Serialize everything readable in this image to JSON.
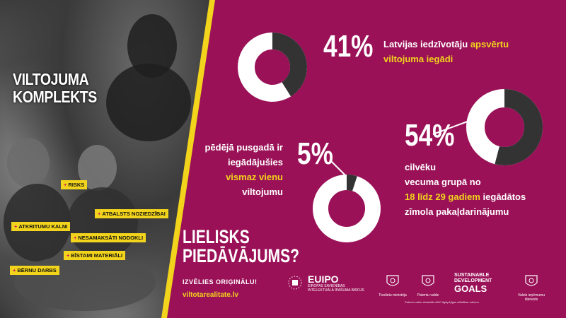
{
  "left_panel": {
    "title_line1": "VILTOJUMA",
    "title_line2": "KOMPLEKTS",
    "tags": [
      "RISKS",
      "ATBALSTS NOZIEDZĪBAI",
      "ATKRITUMU KALNI",
      "NESAMAKSĀTI NODOKLI",
      "BĪSTAMI MATERIĀLI",
      "BĒRNU DARBS"
    ]
  },
  "stats": [
    {
      "percent_label": "41%",
      "value": 41,
      "text_before": "Latvijas iedzīvotāju ",
      "highlight": "apsvērtu",
      "text_after": "viltojuma iegādi"
    },
    {
      "percent_label": "54%",
      "value": 54,
      "line1": "cilvēku",
      "line2": "vecuma grupā no",
      "highlight": "18 līdz 29 gadiem",
      "line3_after": " iegādātos",
      "line4": "zīmola pakaļdarinājumu"
    },
    {
      "percent_label": "5%",
      "value": 5,
      "line1": "pēdējā pusgadā ir",
      "line2": "iegādājušies",
      "highlight": "vismaz vienu",
      "line4": "viltojumu"
    }
  ],
  "cta": {
    "title_line1": "LIELISKS",
    "title_line2": "PIEDĀVĀJUMS?",
    "subtitle": "IZVĒLIES ORIĢINĀLU!",
    "website": "viltotarealitate.lv"
  },
  "logos": {
    "euipo": "EUIPO",
    "euipo_sub1": "EIROPAS SAVIENĪBAS",
    "euipo_sub2": "INTELEKTUĀLĀ ĪPAŠUMA BIROJS",
    "ministry": "Tieslietu ministrija",
    "patent_office": "Patentu valde",
    "sdg_line1": "SUSTAINABLE",
    "sdg_line2": "DEVELOPMENT",
    "sdg_line3": "GOALS",
    "tax_service": "Valsts ieņēmumu dienests",
    "note": "Patentu valde sēsaistās ANO Ilgtspējīgas attīstības mērķus."
  },
  "colors": {
    "background": "#9a1157",
    "accent": "#f2d41c",
    "donut_dark": "#333333",
    "donut_light": "#ffffff"
  }
}
